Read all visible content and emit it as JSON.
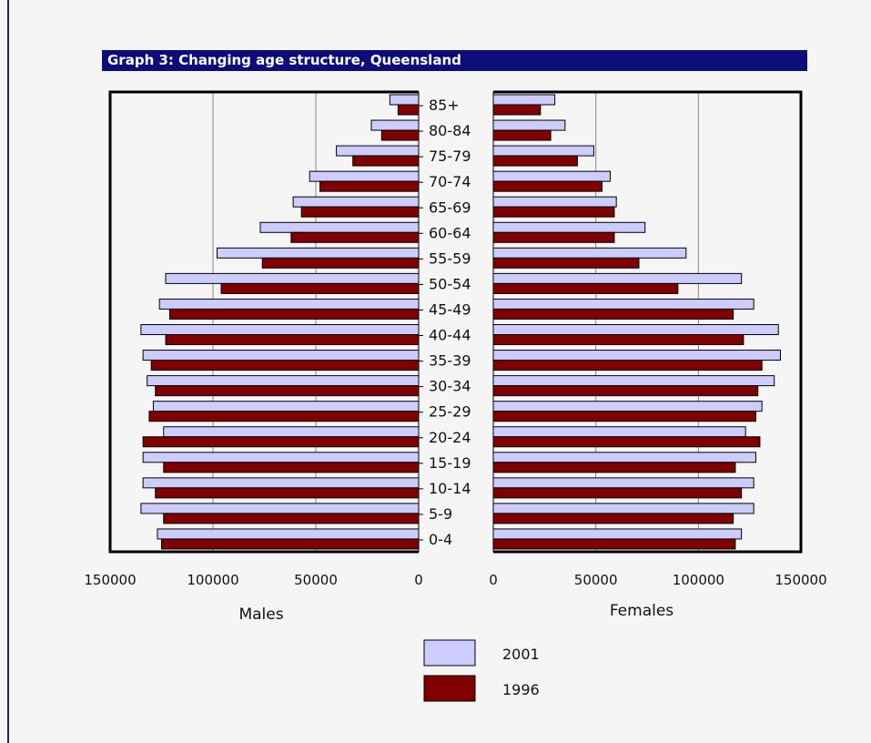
{
  "page": {
    "title": "Graph 3: Changing age structure, Queensland"
  },
  "colors": {
    "series_2001": "#ccccff",
    "series_1996": "#800000",
    "title_bar": "#0d0d7a",
    "background": "#f5f5f5"
  },
  "chart_data": {
    "type": "bar",
    "orientation": "horizontal",
    "subtype": "population-pyramid",
    "title": "Graph 3: Changing age structure, Queensland",
    "categories": [
      "0-4",
      "5-9",
      "10-14",
      "15-19",
      "20-24",
      "25-29",
      "30-34",
      "35-39",
      "40-44",
      "45-49",
      "50-54",
      "55-59",
      "60-64",
      "65-69",
      "70-74",
      "75-79",
      "80-84",
      "85+"
    ],
    "panels": [
      {
        "name": "Males",
        "xlabel": "Males",
        "xlim": [
          150000,
          0
        ],
        "ticks": [
          "150000",
          "100000",
          "50000",
          "0"
        ],
        "tick_values": [
          150000,
          100000,
          50000,
          0
        ],
        "series": [
          {
            "name": "2001",
            "values": [
              127000,
              135000,
              134000,
              134000,
              124000,
              129000,
              132000,
              134000,
              135000,
              126000,
              123000,
              98000,
              77000,
              61000,
              53000,
              40000,
              23000,
              14000
            ]
          },
          {
            "name": "1996",
            "values": [
              125000,
              124000,
              128000,
              124000,
              134000,
              131000,
              128000,
              130000,
              123000,
              121000,
              96000,
              76000,
              62000,
              57000,
              48000,
              32000,
              18000,
              10000
            ]
          }
        ]
      },
      {
        "name": "Females",
        "xlabel": "Females",
        "xlim": [
          0,
          150000
        ],
        "ticks": [
          "0",
          "50000",
          "100000",
          "150000"
        ],
        "tick_values": [
          0,
          50000,
          100000,
          150000
        ],
        "series": [
          {
            "name": "2001",
            "values": [
              121000,
              127000,
              127000,
              128000,
              123000,
              131000,
              137000,
              140000,
              139000,
              127000,
              121000,
              94000,
              74000,
              60000,
              57000,
              49000,
              35000,
              30000
            ]
          },
          {
            "name": "1996",
            "values": [
              118000,
              117000,
              121000,
              118000,
              130000,
              128000,
              129000,
              131000,
              122000,
              117000,
              90000,
              71000,
              59000,
              59000,
              53000,
              41000,
              28000,
              23000
            ]
          }
        ]
      }
    ],
    "legend": {
      "position": "bottom-center",
      "entries": [
        "2001",
        "1996"
      ]
    },
    "grid": "vertical-major"
  }
}
